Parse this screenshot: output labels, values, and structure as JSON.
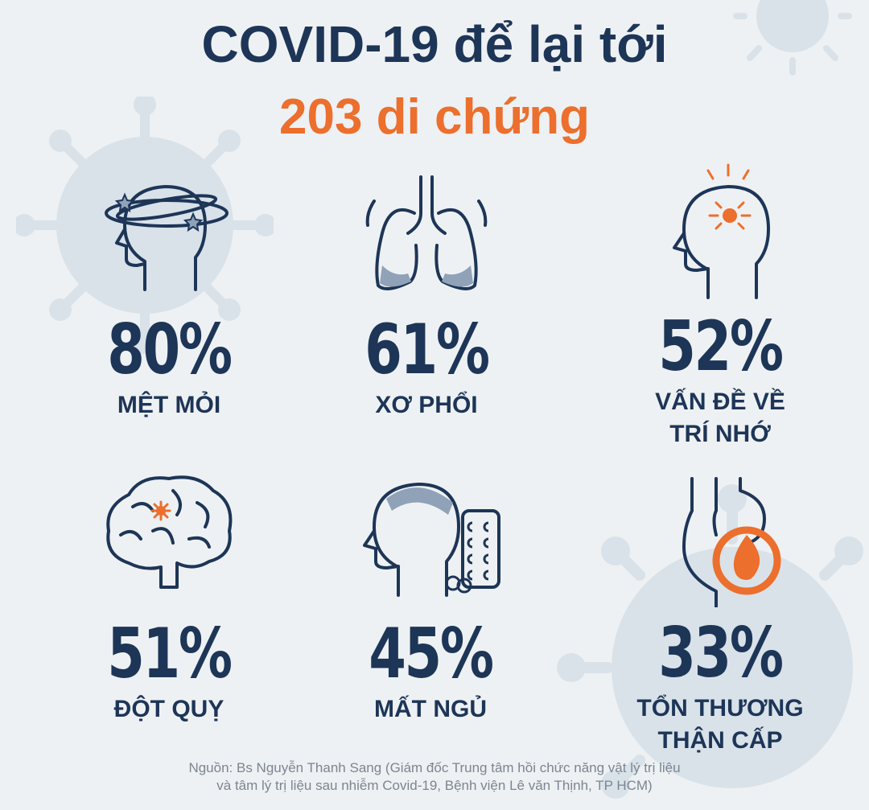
{
  "title": {
    "line1": "COVID-19 để lại tới",
    "line2": "203 di chứng"
  },
  "colors": {
    "navy": "#1d3557",
    "accent": "#ec6f2d",
    "background": "#eef1f3",
    "virus": "#c9d6e2"
  },
  "stats": [
    {
      "percent": "80%",
      "label_lines": [
        "MỆT MỎI"
      ],
      "icon": "dizzy-head-icon"
    },
    {
      "percent": "61%",
      "label_lines": [
        "XƠ PHỔI"
      ],
      "icon": "lungs-icon"
    },
    {
      "percent": "52%",
      "label_lines": [
        "VẤN ĐỀ VỀ",
        "TRÍ NHỚ"
      ],
      "icon": "head-pain-icon"
    },
    {
      "percent": "51%",
      "label_lines": [
        "ĐỘT QUỴ"
      ],
      "icon": "brain-icon"
    },
    {
      "percent": "45%",
      "label_lines": [
        "MẤT NGỦ"
      ],
      "icon": "head-pills-icon"
    },
    {
      "percent": "33%",
      "label_lines": [
        "TỔN THƯƠNG",
        "THẬN CẤP"
      ],
      "icon": "kidney-flame-icon"
    }
  ],
  "source": {
    "line1": "Nguồn: Bs Nguyễn Thanh Sang (Giám đốc Trung tâm hồi chức năng vật lý trị liệu",
    "line2": "và tâm lý trị liệu sau nhiễm Covid-19, Bệnh viện Lê văn Thịnh, TP HCM)"
  }
}
